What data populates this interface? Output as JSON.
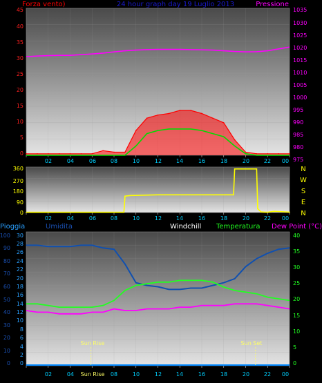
{
  "header": {
    "left_label": "Forza vento)",
    "title": "24 hour graph day  19 Luglio 2013",
    "right_label": "Pressione"
  },
  "colors": {
    "wind": "#ff0000",
    "wind_avg": "#00dd00",
    "pressure": "#ff00ff",
    "direction": "#ffff00",
    "humidity": "#1050b0",
    "rain": "#0088ff",
    "temperature": "#22ff22",
    "dewpoint": "#ff00ff",
    "windchill": "#ffffff",
    "sun": "#ffff66"
  },
  "x_axis": {
    "ticks": [
      "02",
      "04",
      "06",
      "08",
      "10",
      "12",
      "14",
      "16",
      "18",
      "20",
      "22",
      "00"
    ]
  },
  "chart_data": [
    {
      "type": "line",
      "name": "wind_pressure",
      "x_hours": [
        0,
        1,
        2,
        3,
        4,
        5,
        6,
        7,
        8,
        9,
        10,
        11,
        12,
        13,
        14,
        15,
        16,
        17,
        18,
        19,
        20,
        21,
        22,
        23,
        24
      ],
      "wind_left_ticks": [
        "0",
        "5",
        "10",
        "15",
        "20",
        "25",
        "30",
        "35",
        "40",
        "45"
      ],
      "pressure_right_ticks": [
        "975",
        "980",
        "985",
        "990",
        "995",
        "1000",
        "1005",
        "1010",
        "1015",
        "1020",
        "1025",
        "1030",
        "1035"
      ],
      "wind_ylim": [
        0,
        47.5
      ],
      "pressure_ylim": [
        972.5,
        1036.5
      ],
      "pressure": [
        1015.4,
        1015.7,
        1015.9,
        1016.0,
        1016.0,
        1016.3,
        1016.6,
        1017.0,
        1017.5,
        1018.0,
        1018.3,
        1018.5,
        1018.6,
        1018.6,
        1018.6,
        1018.5,
        1018.4,
        1018.3,
        1018.0,
        1017.7,
        1017.5,
        1017.6,
        1018.0,
        1018.8,
        1019.6
      ],
      "wind_gust": [
        0.5,
        0.5,
        0.5,
        0.5,
        0.5,
        0.5,
        0.5,
        1.5,
        1.0,
        1.0,
        8.0,
        12.0,
        13.0,
        13.5,
        14.5,
        14.5,
        13.5,
        12.0,
        10.5,
        5.0,
        1.0,
        0.5,
        0.5,
        0.5,
        0.5
      ],
      "wind_avg": [
        0,
        0,
        0,
        0,
        0,
        0,
        0,
        0,
        0,
        0,
        3.0,
        7.0,
        8.0,
        8.5,
        8.5,
        8.5,
        8.0,
        7.0,
        6.0,
        3.0,
        0.5,
        0,
        0,
        0,
        0
      ]
    },
    {
      "type": "line",
      "name": "wind_direction",
      "y_ticks": [
        "0",
        "90",
        "180",
        "270",
        "360"
      ],
      "ylim": [
        0,
        360
      ],
      "compass": [
        "N",
        "W",
        "S",
        "E",
        "N"
      ],
      "points": [
        [
          0,
          2
        ],
        [
          8.9,
          2
        ],
        [
          9.0,
          130
        ],
        [
          9.5,
          135
        ],
        [
          12,
          140
        ],
        [
          15,
          140
        ],
        [
          17,
          140
        ],
        [
          18.9,
          140
        ],
        [
          19.0,
          345
        ],
        [
          21.0,
          345
        ],
        [
          21.1,
          30
        ],
        [
          21.4,
          5
        ],
        [
          22,
          2
        ],
        [
          22.6,
          10
        ],
        [
          23.0,
          8
        ],
        [
          24,
          3
        ]
      ]
    },
    {
      "type": "line",
      "name": "temperature_humidity",
      "labels": {
        "rain": "Pioggia",
        "humidity": "Umidita",
        "windchill": "Windchill",
        "temperature": "Temperatura",
        "dewpoint": "Dew Point (°C)"
      },
      "humidity_ticks": [
        "0",
        "10",
        "20",
        "30",
        "40",
        "50",
        "60",
        "70",
        "80",
        "90",
        "100"
      ],
      "rain_ticks": [
        "0",
        "2",
        "4",
        "6",
        "8",
        "10",
        "12",
        "14",
        "16",
        "18",
        "20",
        "22",
        "24",
        "26",
        "28",
        "30"
      ],
      "temp_ticks": [
        "0",
        "5",
        "10",
        "15",
        "20",
        "25",
        "30",
        "35",
        "40"
      ],
      "humidity_ylim": [
        0,
        100
      ],
      "temp_ylim": [
        0,
        40
      ],
      "humidity": [
        90,
        90,
        89,
        89,
        89,
        90,
        90,
        88,
        87,
        76,
        62,
        60,
        59,
        57,
        57,
        58,
        58,
        60,
        62,
        65,
        74,
        80,
        84,
        87,
        88
      ],
      "temperature": [
        18.5,
        18.5,
        18.0,
        17.5,
        17.5,
        17.5,
        17.5,
        18.0,
        19.5,
        22.5,
        24.0,
        24.5,
        25.0,
        25.0,
        25.5,
        25.5,
        25.5,
        25.0,
        23.5,
        22.5,
        22.0,
        21.5,
        20.5,
        20.0,
        19.5
      ],
      "dewpoint": [
        16.5,
        16.0,
        16.0,
        15.5,
        15.5,
        15.5,
        16.0,
        16.0,
        17.0,
        16.5,
        16.5,
        17.0,
        17.0,
        17.0,
        17.5,
        17.5,
        18.0,
        18.0,
        18.0,
        18.5,
        18.5,
        18.5,
        18.0,
        17.5,
        17.0
      ],
      "rain": [
        0,
        0,
        0,
        0,
        0,
        0,
        0,
        0,
        0,
        0,
        0,
        0,
        0,
        0,
        0,
        0,
        0,
        0,
        0,
        0,
        0,
        0,
        0,
        0,
        0
      ],
      "sun_rise": {
        "label": "Sun Rise",
        "hour": 5.9
      },
      "sun_set": {
        "label": "Sun Set",
        "hour": 20.9
      }
    }
  ]
}
